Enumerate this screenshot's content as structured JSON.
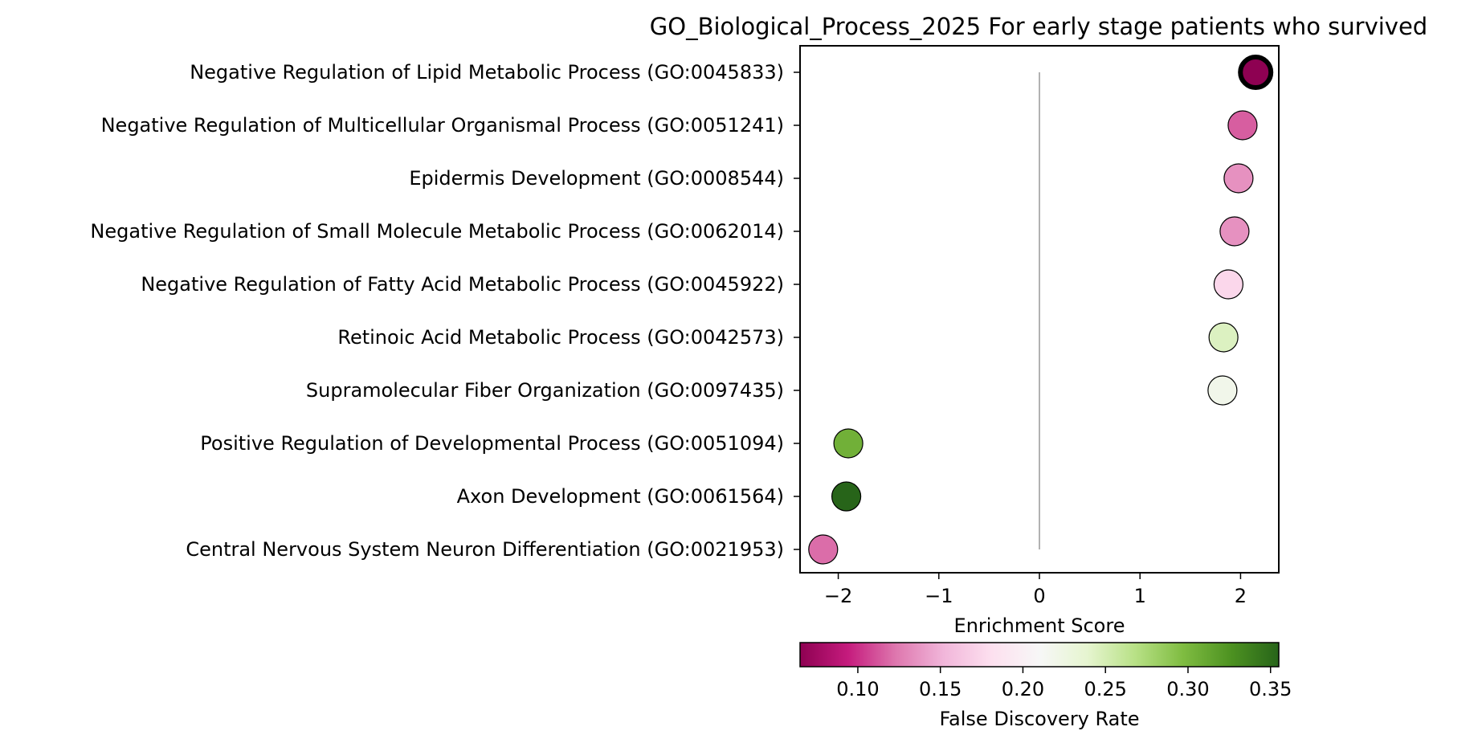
{
  "chart_data": {
    "type": "scatter",
    "title": "GO_Biological_Process_2025 For early stage patients who survived",
    "xlabel": "Enrichment Score",
    "xlim": [
      -2.38,
      2.38
    ],
    "xticks": [
      -2,
      -1,
      0,
      1,
      2
    ],
    "xtick_labels": [
      "−2",
      "−1",
      "0",
      "1",
      "2"
    ],
    "reference_line_x": 0,
    "grid": false,
    "points": [
      {
        "term": "Negative Regulation of Lipid Metabolic Process (GO:0045833)",
        "x": 2.15,
        "fdr": 0.065,
        "highlight": true
      },
      {
        "term": "Negative Regulation of Multicellular Organismal Process (GO:0051241)",
        "x": 2.02,
        "fdr": 0.115,
        "highlight": false
      },
      {
        "term": "Epidermis Development (GO:0008544)",
        "x": 1.98,
        "fdr": 0.135,
        "highlight": false
      },
      {
        "term": "Negative Regulation of Small Molecule Metabolic Process (GO:0062014)",
        "x": 1.94,
        "fdr": 0.135,
        "highlight": false
      },
      {
        "term": "Negative Regulation of Fatty Acid Metabolic Process (GO:0045922)",
        "x": 1.88,
        "fdr": 0.175,
        "highlight": false
      },
      {
        "term": "Retinoic Acid Metabolic Process (GO:0042573)",
        "x": 1.83,
        "fdr": 0.245,
        "highlight": false
      },
      {
        "term": "Supramolecular Fiber Organization (GO:0097435)",
        "x": 1.82,
        "fdr": 0.22,
        "highlight": false
      },
      {
        "term": "Positive Regulation of Developmental Process (GO:0051094)",
        "x": -1.9,
        "fdr": 0.305,
        "highlight": false
      },
      {
        "term": "Axon Development (GO:0061564)",
        "x": -1.92,
        "fdr": 0.355,
        "highlight": false
      },
      {
        "term": "Central Nervous System Neuron Differentiation (GO:0021953)",
        "x": -2.15,
        "fdr": 0.12,
        "highlight": false
      }
    ],
    "colorbar": {
      "label": "False Discovery Rate",
      "range": [
        0.065,
        0.355
      ],
      "ticks": [
        0.1,
        0.15,
        0.2,
        0.25,
        0.3,
        0.35
      ],
      "tick_labels": [
        "0.10",
        "0.15",
        "0.20",
        "0.25",
        "0.30",
        "0.35"
      ],
      "colormap": "PiYG",
      "stops": [
        "#8e0152",
        "#c51b7d",
        "#de77ae",
        "#f1b6da",
        "#fde0ef",
        "#f7f7f7",
        "#e6f5d0",
        "#b8e186",
        "#7fbc41",
        "#4d9221",
        "#276419"
      ]
    }
  }
}
